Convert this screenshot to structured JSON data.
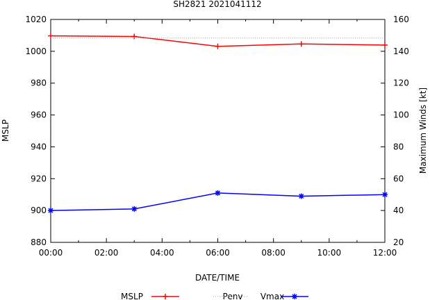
{
  "chart_data": {
    "type": "line",
    "title": "SH2821 2021041112",
    "xlabel": "DATE/TIME",
    "ylabel_left": "MSLP",
    "ylabel_right": "Maximum Winds [kt]",
    "x_ticks": [
      "00:00",
      "02:00",
      "04:00",
      "06:00",
      "08:00",
      "10:00",
      "12:00"
    ],
    "x_range_hours": [
      0,
      12
    ],
    "y_left_range": [
      880,
      1020
    ],
    "y_left_ticks": [
      "880",
      "900",
      "920",
      "940",
      "960",
      "980",
      "1000",
      "1020"
    ],
    "y_right_range": [
      20,
      160
    ],
    "y_right_ticks": [
      "20",
      "40",
      "60",
      "80",
      "100",
      "120",
      "140",
      "160"
    ],
    "series": [
      {
        "name": "MSLP",
        "axis": "left",
        "color": "#ff0000",
        "marker": "plus",
        "x_hours": [
          0,
          3,
          6,
          9,
          12
        ],
        "values": [
          1009.7,
          1009.3,
          1003.1,
          1004.6,
          1003.9
        ]
      },
      {
        "name": "Penv",
        "axis": "left",
        "color": "#a0a0a0",
        "style": "dotted",
        "x_hours": [
          0,
          12
        ],
        "values": [
          1008.3,
          1008.3
        ]
      },
      {
        "name": "Vmax",
        "axis": "right",
        "color": "#0000ff",
        "marker": "star",
        "x_hours": [
          0,
          3,
          6,
          9,
          12
        ],
        "values": [
          40,
          41,
          51,
          49,
          50
        ]
      }
    ],
    "legend": {
      "position": "bottom",
      "entries": [
        "MSLP",
        "Penv",
        "Vmax"
      ]
    }
  }
}
